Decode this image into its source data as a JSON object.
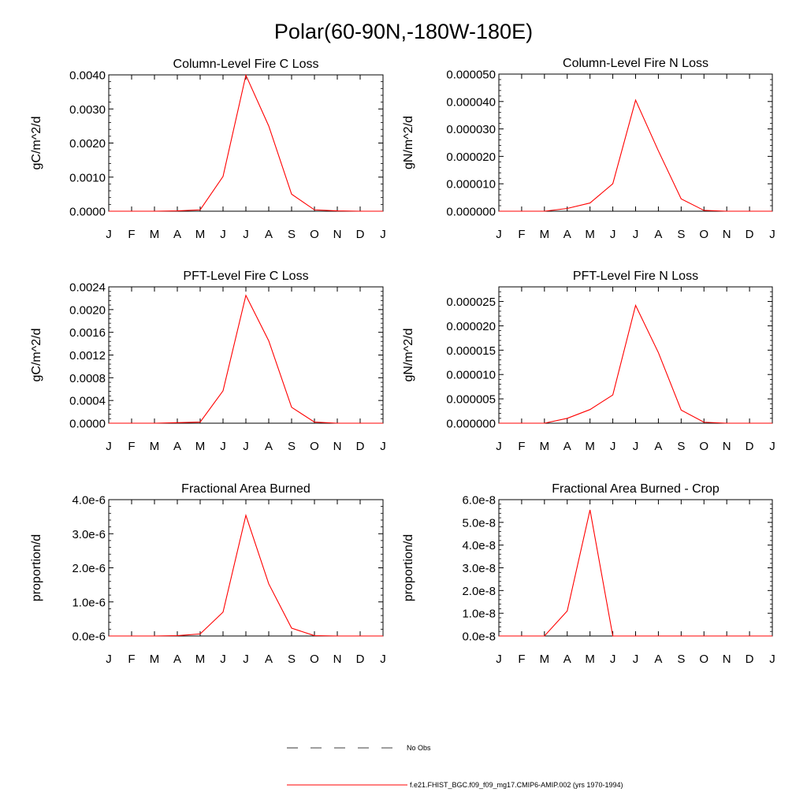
{
  "figure_title": "Polar(60-90N,-180W-180E)",
  "colors": {
    "model_line": "#ff0000",
    "obs_line": "#000000",
    "axis": "#000000"
  },
  "legend": {
    "obs_label": "No Obs",
    "model_label": "f.e21.FHIST_BGC.f09_f09_mg17.CMIP6-AMIP.002 (yrs 1970-1994)"
  },
  "chart_data": [
    {
      "type": "line",
      "title": "Column-Level Fire C Loss",
      "ylabel": "gC/m^2/d",
      "x": [
        "J",
        "F",
        "M",
        "A",
        "M",
        "J",
        "J",
        "A",
        "S",
        "O",
        "N",
        "D",
        "J"
      ],
      "ylim": [
        0,
        0.004
      ],
      "yticks": [
        0,
        0.001,
        0.002,
        0.003,
        0.004
      ],
      "ytick_labels": [
        "0.0000",
        "0.0010",
        "0.0020",
        "0.0030",
        "0.0040"
      ],
      "series": [
        {
          "name": "f.e21.FHIST_BGC.f09_f09_mg17.CMIP6-AMIP.002 (yrs 1970-1994)",
          "values": [
            0,
            0,
            0,
            1e-05,
            4e-05,
            0.00102,
            0.00399,
            0.0025,
            0.0005,
            4e-05,
            1e-05,
            0,
            0
          ]
        }
      ]
    },
    {
      "type": "line",
      "title": "Column-Level Fire N Loss",
      "ylabel": "gN/m^2/d",
      "x": [
        "J",
        "F",
        "M",
        "A",
        "M",
        "J",
        "J",
        "A",
        "S",
        "O",
        "N",
        "D",
        "J"
      ],
      "ylim": [
        0,
        5e-05
      ],
      "yticks": [
        0,
        1e-05,
        2e-05,
        3e-05,
        4e-05,
        5e-05
      ],
      "ytick_labels": [
        "0.000000",
        "0.000010",
        "0.000020",
        "0.000030",
        "0.000040",
        "0.000050"
      ],
      "series": [
        {
          "name": "f.e21.FHIST_BGC.f09_f09_mg17.CMIP6-AMIP.002 (yrs 1970-1994)",
          "values": [
            0,
            0,
            0,
            1e-06,
            3e-06,
            1e-05,
            4.05e-05,
            2.2e-05,
            4.5e-06,
            3e-07,
            0,
            0,
            0
          ]
        }
      ]
    },
    {
      "type": "line",
      "title": "PFT-Level Fire C Loss",
      "ylabel": "gC/m^2/d",
      "x": [
        "J",
        "F",
        "M",
        "A",
        "M",
        "J",
        "J",
        "A",
        "S",
        "O",
        "N",
        "D",
        "J"
      ],
      "ylim": [
        0,
        0.0024
      ],
      "yticks": [
        0,
        0.0004,
        0.0008,
        0.0012,
        0.0016,
        0.002,
        0.0024
      ],
      "ytick_labels": [
        "0.0000",
        "0.0004",
        "0.0008",
        "0.0012",
        "0.0016",
        "0.0020",
        "0.0024"
      ],
      "series": [
        {
          "name": "f.e21.FHIST_BGC.f09_f09_mg17.CMIP6-AMIP.002 (yrs 1970-1994)",
          "values": [
            0,
            0,
            0,
            1e-05,
            2e-05,
            0.00057,
            0.00225,
            0.00145,
            0.00028,
            2e-05,
            0,
            0,
            0
          ]
        }
      ]
    },
    {
      "type": "line",
      "title": "PFT-Level Fire N Loss",
      "ylabel": "gN/m^2/d",
      "x": [
        "J",
        "F",
        "M",
        "A",
        "M",
        "J",
        "J",
        "A",
        "S",
        "O",
        "N",
        "D",
        "J"
      ],
      "ylim": [
        0,
        2.8e-05
      ],
      "yticks": [
        0,
        5e-06,
        1e-05,
        1.5e-05,
        2e-05,
        2.5e-05
      ],
      "ytick_labels": [
        "0.000000",
        "0.000005",
        "0.000010",
        "0.000015",
        "0.000020",
        "0.000025"
      ],
      "series": [
        {
          "name": "f.e21.FHIST_BGC.f09_f09_mg17.CMIP6-AMIP.002 (yrs 1970-1994)",
          "values": [
            0,
            0,
            0,
            1e-06,
            2.8e-06,
            5.8e-06,
            2.42e-05,
            1.45e-05,
            2.7e-06,
            2e-07,
            0,
            0,
            0
          ]
        }
      ]
    },
    {
      "type": "line",
      "title": "Fractional Area Burned",
      "ylabel": "proportion/d",
      "x": [
        "J",
        "F",
        "M",
        "A",
        "M",
        "J",
        "J",
        "A",
        "S",
        "O",
        "N",
        "D",
        "J"
      ],
      "ylim": [
        0,
        4e-06
      ],
      "yticks": [
        0,
        1e-06,
        2e-06,
        3e-06,
        4e-06
      ],
      "ytick_labels": [
        "0.0e-6",
        "1.0e-6",
        "2.0e-6",
        "3.0e-6",
        "4.0e-6"
      ],
      "series": [
        {
          "name": "f.e21.FHIST_BGC.f09_f09_mg17.CMIP6-AMIP.002 (yrs 1970-1994)",
          "values": [
            0,
            0,
            0,
            1e-08,
            6e-08,
            7e-07,
            3.54e-06,
            1.53e-06,
            2.3e-07,
            1e-08,
            0,
            0,
            0
          ]
        }
      ]
    },
    {
      "type": "line",
      "title": "Fractional Area Burned - Crop",
      "ylabel": "proportion/d",
      "x": [
        "J",
        "F",
        "M",
        "A",
        "M",
        "J",
        "J",
        "A",
        "S",
        "O",
        "N",
        "D",
        "J"
      ],
      "ylim": [
        0,
        6e-08
      ],
      "yticks": [
        0,
        1e-08,
        2e-08,
        3e-08,
        4e-08,
        5e-08,
        6e-08
      ],
      "ytick_labels": [
        "0.0e-8",
        "1.0e-8",
        "2.0e-8",
        "3.0e-8",
        "4.0e-8",
        "5.0e-8",
        "6.0e-8"
      ],
      "series": [
        {
          "name": "f.e21.FHIST_BGC.f09_f09_mg17.CMIP6-AMIP.002 (yrs 1970-1994)",
          "values": [
            0,
            0,
            0,
            1.1e-08,
            5.55e-08,
            0,
            0,
            0,
            0,
            0,
            0,
            0,
            0
          ]
        }
      ]
    }
  ]
}
